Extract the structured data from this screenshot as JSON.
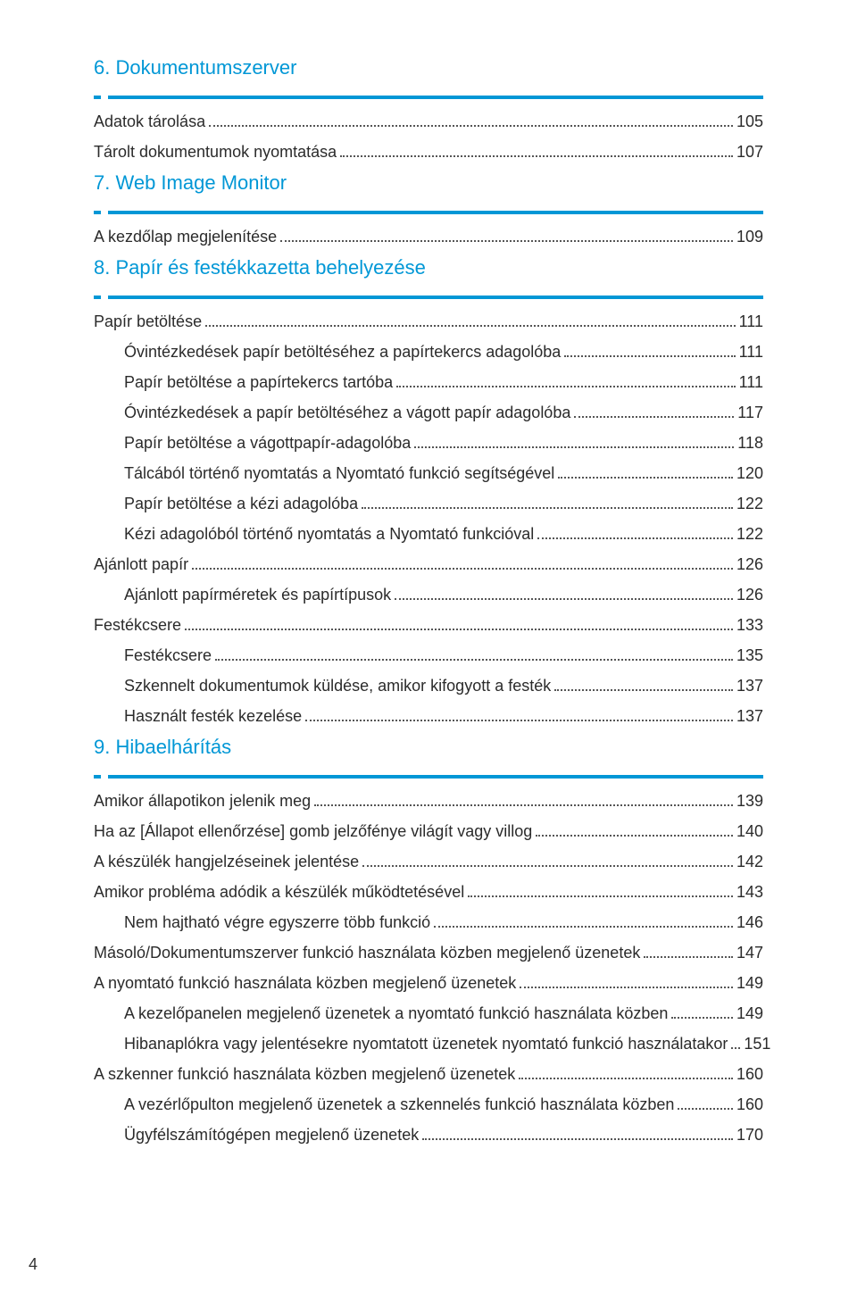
{
  "colors": {
    "heading_link": "#0097d6",
    "heading_black": "#1a1a1a",
    "body_text": "#2b2b2b",
    "rule_color": "#0097d6",
    "leader_color": "#555555",
    "background": "#ffffff"
  },
  "typography": {
    "heading_fontsize_pt": 16,
    "body_fontsize_pt": 13,
    "font_family": "sans-serif"
  },
  "page_number": "4",
  "sections": [
    {
      "num": "6.",
      "title": "Dokumentumszerver",
      "color": "link",
      "items": [
        {
          "text": "Adatok tárolása",
          "page": "105",
          "level": 0
        },
        {
          "text": "Tárolt dokumentumok nyomtatása",
          "page": "107",
          "level": 0
        }
      ]
    },
    {
      "num": "7.",
      "title": "Web Image Monitor",
      "color": "link",
      "items": [
        {
          "text": "A kezdőlap megjelenítése",
          "page": "109",
          "level": 0
        }
      ]
    },
    {
      "num": "8.",
      "title": "Papír és festékkazetta behelyezése",
      "color": "link",
      "items": [
        {
          "text": "Papír betöltése",
          "page": "111",
          "level": 0
        },
        {
          "text": "Óvintézkedések papír betöltéséhez a papírtekercs adagolóba",
          "page": "111",
          "level": 1
        },
        {
          "text": "Papír betöltése a papírtekercs tartóba",
          "page": "111",
          "level": 1
        },
        {
          "text": "Óvintézkedések a papír betöltéséhez a vágott papír adagolóba",
          "page": "117",
          "level": 1
        },
        {
          "text": "Papír betöltése a vágottpapír-adagolóba",
          "page": "118",
          "level": 1
        },
        {
          "text": "Tálcából történő nyomtatás a Nyomtató funkció segítségével",
          "page": "120",
          "level": 1
        },
        {
          "text": "Papír betöltése a kézi adagolóba",
          "page": "122",
          "level": 1
        },
        {
          "text": "Kézi adagolóból történő nyomtatás a Nyomtató funkcióval",
          "page": "122",
          "level": 1
        },
        {
          "text": "Ajánlott papír",
          "page": "126",
          "level": 0
        },
        {
          "text": "Ajánlott papírméretek és papírtípusok",
          "page": "126",
          "level": 1
        },
        {
          "text": "Festékcsere",
          "page": "133",
          "level": 0
        },
        {
          "text": "Festékcsere",
          "page": "135",
          "level": 1
        },
        {
          "text": "Szkennelt dokumentumok küldése, amikor kifogyott a festék",
          "page": "137",
          "level": 1
        },
        {
          "text": "Használt festék kezelése",
          "page": "137",
          "level": 1
        }
      ]
    },
    {
      "num": "9.",
      "title": "Hibaelhárítás",
      "color": "link",
      "items": [
        {
          "text": "Amikor állapotikon jelenik meg",
          "page": "139",
          "level": 0
        },
        {
          "text": "Ha az [Állapot ellenőrzése] gomb jelzőfénye világít vagy villog",
          "page": "140",
          "level": 0
        },
        {
          "text": "A készülék hangjelzéseinek jelentése",
          "page": "142",
          "level": 0
        },
        {
          "text": "Amikor probléma adódik a készülék működtetésével",
          "page": "143",
          "level": 0
        },
        {
          "text": "Nem hajtható végre egyszerre több funkció",
          "page": "146",
          "level": 1
        },
        {
          "text": "Másoló/Dokumentumszerver funkció használata közben megjelenő üzenetek",
          "page": "147",
          "level": 0
        },
        {
          "text": "A nyomtató funkció használata közben megjelenő üzenetek",
          "page": "149",
          "level": 0
        },
        {
          "text": "A kezelőpanelen megjelenő üzenetek a nyomtató funkció használata közben",
          "page": "149",
          "level": 1
        },
        {
          "text": "Hibanaplókra vagy jelentésekre nyomtatott üzenetek nyomtató funkció használatakor",
          "page": "151",
          "level": 1
        },
        {
          "text": "A szkenner funkció használata közben megjelenő üzenetek",
          "page": "160",
          "level": 0
        },
        {
          "text": "A vezérlőpulton megjelenő üzenetek a szkennelés funkció használata közben",
          "page": "160",
          "level": 1
        },
        {
          "text": "Ügyfélszámítógépen megjelenő üzenetek",
          "page": "170",
          "level": 1
        }
      ]
    }
  ]
}
